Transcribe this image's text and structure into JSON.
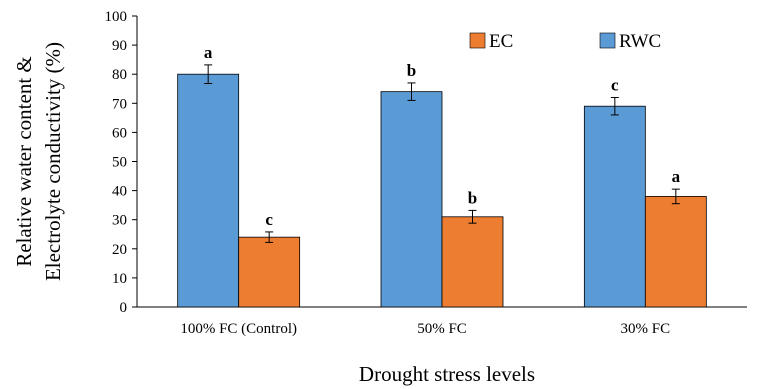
{
  "chart_data": {
    "type": "bar",
    "title": "",
    "xlabel": "Drought stress levels",
    "ylabel_lines": [
      "Relative water content &",
      "Electrolyte conductivity (%)"
    ],
    "ylim": [
      0,
      100
    ],
    "yticks": [
      0,
      10,
      20,
      30,
      40,
      50,
      60,
      70,
      80,
      90,
      100
    ],
    "categories": [
      "100% FC (Control)",
      "50% FC",
      "30% FC"
    ],
    "series": [
      {
        "name": "RWC",
        "color": "#5b9bd5",
        "values": [
          80,
          74,
          69
        ],
        "errors": [
          3.2,
          3.0,
          3.0
        ],
        "significance": [
          "a",
          "b",
          "c"
        ]
      },
      {
        "name": "EC",
        "color": "#ed7d31",
        "values": [
          24,
          31,
          38
        ],
        "errors": [
          1.8,
          2.2,
          2.5
        ],
        "significance": [
          "c",
          "b",
          "a"
        ]
      }
    ],
    "legend": {
      "placement": "top-right",
      "order": [
        "EC",
        "RWC"
      ]
    },
    "grid": false
  }
}
